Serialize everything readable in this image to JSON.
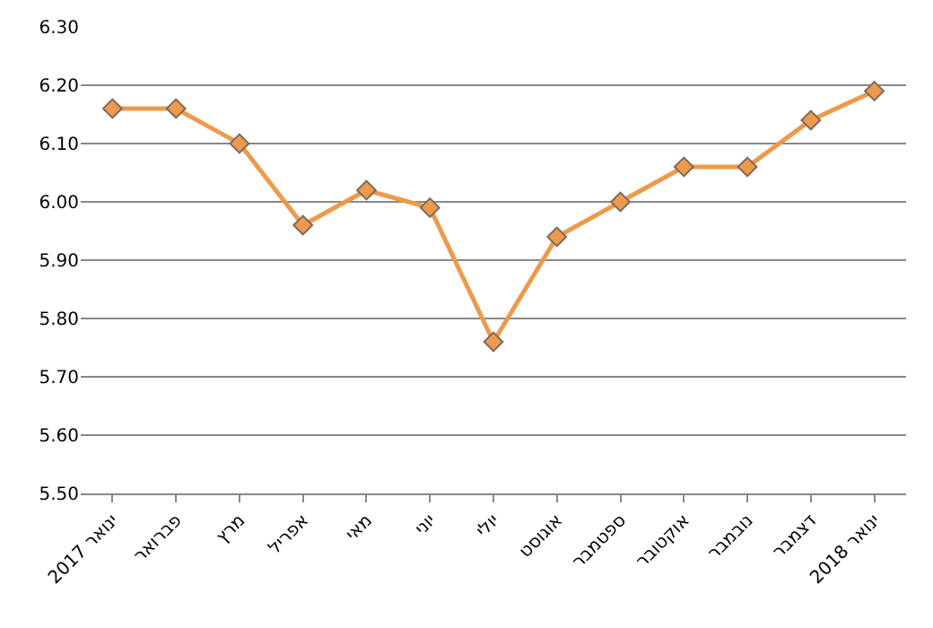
{
  "chart_data": {
    "type": "line",
    "categories": [
      "ינואר 2017",
      "פברואר",
      "מרץ",
      "אפריל",
      "מאי",
      "יוני",
      "יולי",
      "אוגוסט",
      "ספטמבר",
      "אוקטובר",
      "נובמבר",
      "דצמבר",
      "ינואר 2018"
    ],
    "series": [
      {
        "color": "#ed9a4c",
        "values": [
          6.16,
          6.16,
          6.1,
          5.96,
          6.02,
          5.99,
          5.76,
          5.94,
          6.0,
          6.06,
          6.06,
          6.14,
          6.19
        ]
      }
    ],
    "ylim": [
      5.5,
      6.3
    ],
    "yticks": [
      {
        "value": 5.5,
        "label": "5.50"
      },
      {
        "value": 5.6,
        "label": "5.60"
      },
      {
        "value": 5.7,
        "label": "5.70"
      },
      {
        "value": 5.8,
        "label": "5.80"
      },
      {
        "value": 5.9,
        "label": "5.90"
      },
      {
        "value": 6.0,
        "label": "6.00"
      },
      {
        "value": 6.1,
        "label": "6.10"
      },
      {
        "value": 6.2,
        "label": "6.20"
      },
      {
        "value": 6.3,
        "label": "6.30"
      }
    ],
    "grid": "y",
    "marker": "diamond",
    "line_style": "solid"
  }
}
